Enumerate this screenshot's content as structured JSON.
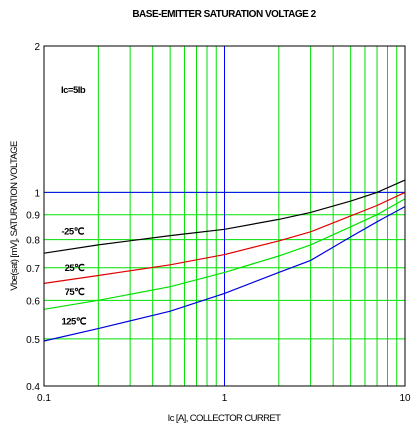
{
  "chart_data": {
    "type": "line",
    "title": "BASE-EMITTER SATURATION VOLTAGE 2",
    "xlabel": "Ic [A], COLLECTOR CURRET",
    "ylabel": "Vbe(sat) [mV], SATURATION VOLTAGE",
    "x_scale": "log",
    "y_scale": "log",
    "xlim": [
      0.1,
      10
    ],
    "ylim": [
      0.4,
      2
    ],
    "x_ticks": [
      {
        "value": 0.1,
        "label": "0.1"
      },
      {
        "value": 1,
        "label": "1"
      },
      {
        "value": 10,
        "label": "10"
      }
    ],
    "y_ticks": [
      {
        "value": 0.4,
        "label": "0.4"
      },
      {
        "value": 0.5,
        "label": "0.5"
      },
      {
        "value": 0.6,
        "label": "0.6"
      },
      {
        "value": 0.7,
        "label": "0.7"
      },
      {
        "value": 0.8,
        "label": "0.8"
      },
      {
        "value": 0.9,
        "label": "0.9"
      },
      {
        "value": 1,
        "label": "1"
      },
      {
        "value": 2,
        "label": "2"
      }
    ],
    "grid": true,
    "annotation": "Ic=5Ib",
    "series": [
      {
        "name": "-25℃",
        "color": "#000000",
        "label_at": {
          "x": 0.125,
          "y": 0.82
        },
        "x": [
          0.1,
          0.2,
          0.5,
          1,
          2,
          3,
          5,
          7,
          10
        ],
        "y": [
          0.75,
          0.78,
          0.815,
          0.84,
          0.88,
          0.91,
          0.96,
          1.0,
          1.06
        ]
      },
      {
        "name": "25℃",
        "color": "#e00000",
        "label_at": {
          "x": 0.13,
          "y": 0.69
        },
        "x": [
          0.1,
          0.2,
          0.5,
          1,
          2,
          3,
          5,
          7,
          10
        ],
        "y": [
          0.65,
          0.675,
          0.71,
          0.745,
          0.795,
          0.83,
          0.895,
          0.94,
          1.0
        ]
      },
      {
        "name": "75℃",
        "color": "#00e000",
        "label_at": {
          "x": 0.13,
          "y": 0.616
        },
        "x": [
          0.1,
          0.2,
          0.5,
          1,
          2,
          3,
          5,
          7,
          10
        ],
        "y": [
          0.575,
          0.6,
          0.64,
          0.685,
          0.74,
          0.78,
          0.85,
          0.9,
          0.97
        ]
      },
      {
        "name": "125℃",
        "color": "#0000e0",
        "label_at": {
          "x": 0.125,
          "y": 0.535
        },
        "x": [
          0.1,
          0.2,
          0.5,
          1,
          2,
          3,
          5,
          7,
          10
        ],
        "y": [
          0.495,
          0.525,
          0.57,
          0.62,
          0.685,
          0.725,
          0.81,
          0.87,
          0.935
        ]
      }
    ],
    "grid_color": "#00e000",
    "highlight_lines": {
      "x": 1,
      "y": 1,
      "color": "#0000ff"
    }
  }
}
